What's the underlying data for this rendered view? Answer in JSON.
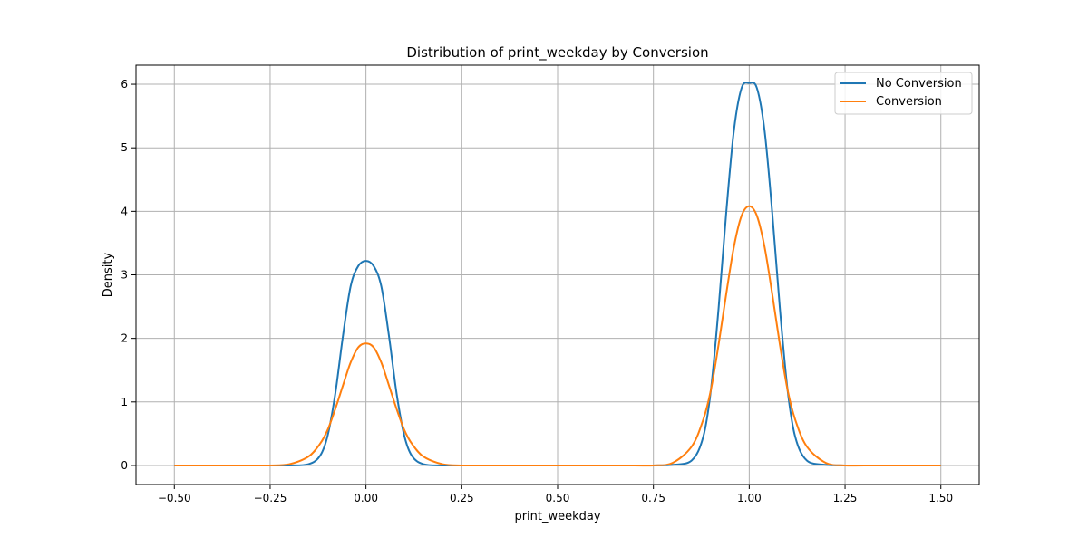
{
  "chart_data": {
    "type": "line",
    "title": "Distribution of print_weekday by Conversion",
    "xlabel": "print_weekday",
    "ylabel": "Density",
    "xlim": [
      -0.6,
      1.6
    ],
    "ylim": [
      -0.3,
      6.3
    ],
    "grid": true,
    "legend_position": "top-right",
    "x_ticks": [
      -0.5,
      -0.25,
      0.0,
      0.25,
      0.5,
      0.75,
      1.0,
      1.25,
      1.5
    ],
    "x_tick_labels": [
      "−0.50",
      "−0.25",
      "0.00",
      "0.25",
      "0.50",
      "0.75",
      "1.00",
      "1.25",
      "1.50"
    ],
    "y_ticks": [
      0,
      1,
      2,
      3,
      4,
      5,
      6
    ],
    "y_tick_labels": [
      "0",
      "1",
      "2",
      "3",
      "4",
      "5",
      "6"
    ],
    "series": [
      {
        "name": "No Conversion",
        "color": "#1f77b4",
        "x": [
          -0.5,
          -0.4,
          -0.3,
          -0.25,
          -0.2,
          -0.15,
          -0.12,
          -0.1,
          -0.08,
          -0.06,
          -0.04,
          -0.02,
          0.0,
          0.02,
          0.04,
          0.06,
          0.08,
          0.1,
          0.12,
          0.15,
          0.2,
          0.25,
          0.3,
          0.4,
          0.5,
          0.6,
          0.7,
          0.75,
          0.8,
          0.85,
          0.88,
          0.9,
          0.92,
          0.94,
          0.96,
          0.98,
          1.0,
          1.02,
          1.04,
          1.06,
          1.08,
          1.1,
          1.12,
          1.15,
          1.2,
          1.25,
          1.3,
          1.4,
          1.5
        ],
        "y": [
          0,
          0,
          0,
          0,
          0.0,
          0.02,
          0.15,
          0.47,
          1.13,
          2.04,
          2.82,
          3.14,
          3.22,
          3.14,
          2.82,
          2.04,
          1.13,
          0.47,
          0.15,
          0.02,
          0.0,
          0,
          0,
          0,
          0,
          0,
          0,
          0,
          0.01,
          0.08,
          0.45,
          1.19,
          2.47,
          3.98,
          5.27,
          5.94,
          6.02,
          5.94,
          5.27,
          3.98,
          2.47,
          1.19,
          0.45,
          0.08,
          0.01,
          0,
          0,
          0,
          0
        ]
      },
      {
        "name": "Conversion",
        "color": "#ff7f0e",
        "x": [
          -0.5,
          -0.4,
          -0.3,
          -0.25,
          -0.2,
          -0.15,
          -0.12,
          -0.1,
          -0.08,
          -0.06,
          -0.04,
          -0.02,
          0.0,
          0.02,
          0.04,
          0.06,
          0.08,
          0.1,
          0.12,
          0.15,
          0.2,
          0.25,
          0.3,
          0.4,
          0.5,
          0.6,
          0.7,
          0.75,
          0.8,
          0.85,
          0.88,
          0.9,
          0.92,
          0.94,
          0.96,
          0.98,
          1.0,
          1.02,
          1.04,
          1.06,
          1.08,
          1.1,
          1.12,
          1.15,
          1.2,
          1.25,
          1.3,
          1.4,
          1.5
        ],
        "y": [
          0,
          0,
          0,
          0,
          0.02,
          0.14,
          0.34,
          0.56,
          0.89,
          1.26,
          1.62,
          1.86,
          1.92,
          1.86,
          1.62,
          1.26,
          0.89,
          0.56,
          0.34,
          0.14,
          0.02,
          0,
          0,
          0,
          0,
          0,
          0,
          0,
          0.04,
          0.3,
          0.72,
          1.19,
          1.9,
          2.7,
          3.44,
          3.93,
          4.08,
          3.93,
          3.44,
          2.7,
          1.9,
          1.19,
          0.72,
          0.3,
          0.04,
          0,
          0,
          0,
          0
        ]
      }
    ]
  }
}
